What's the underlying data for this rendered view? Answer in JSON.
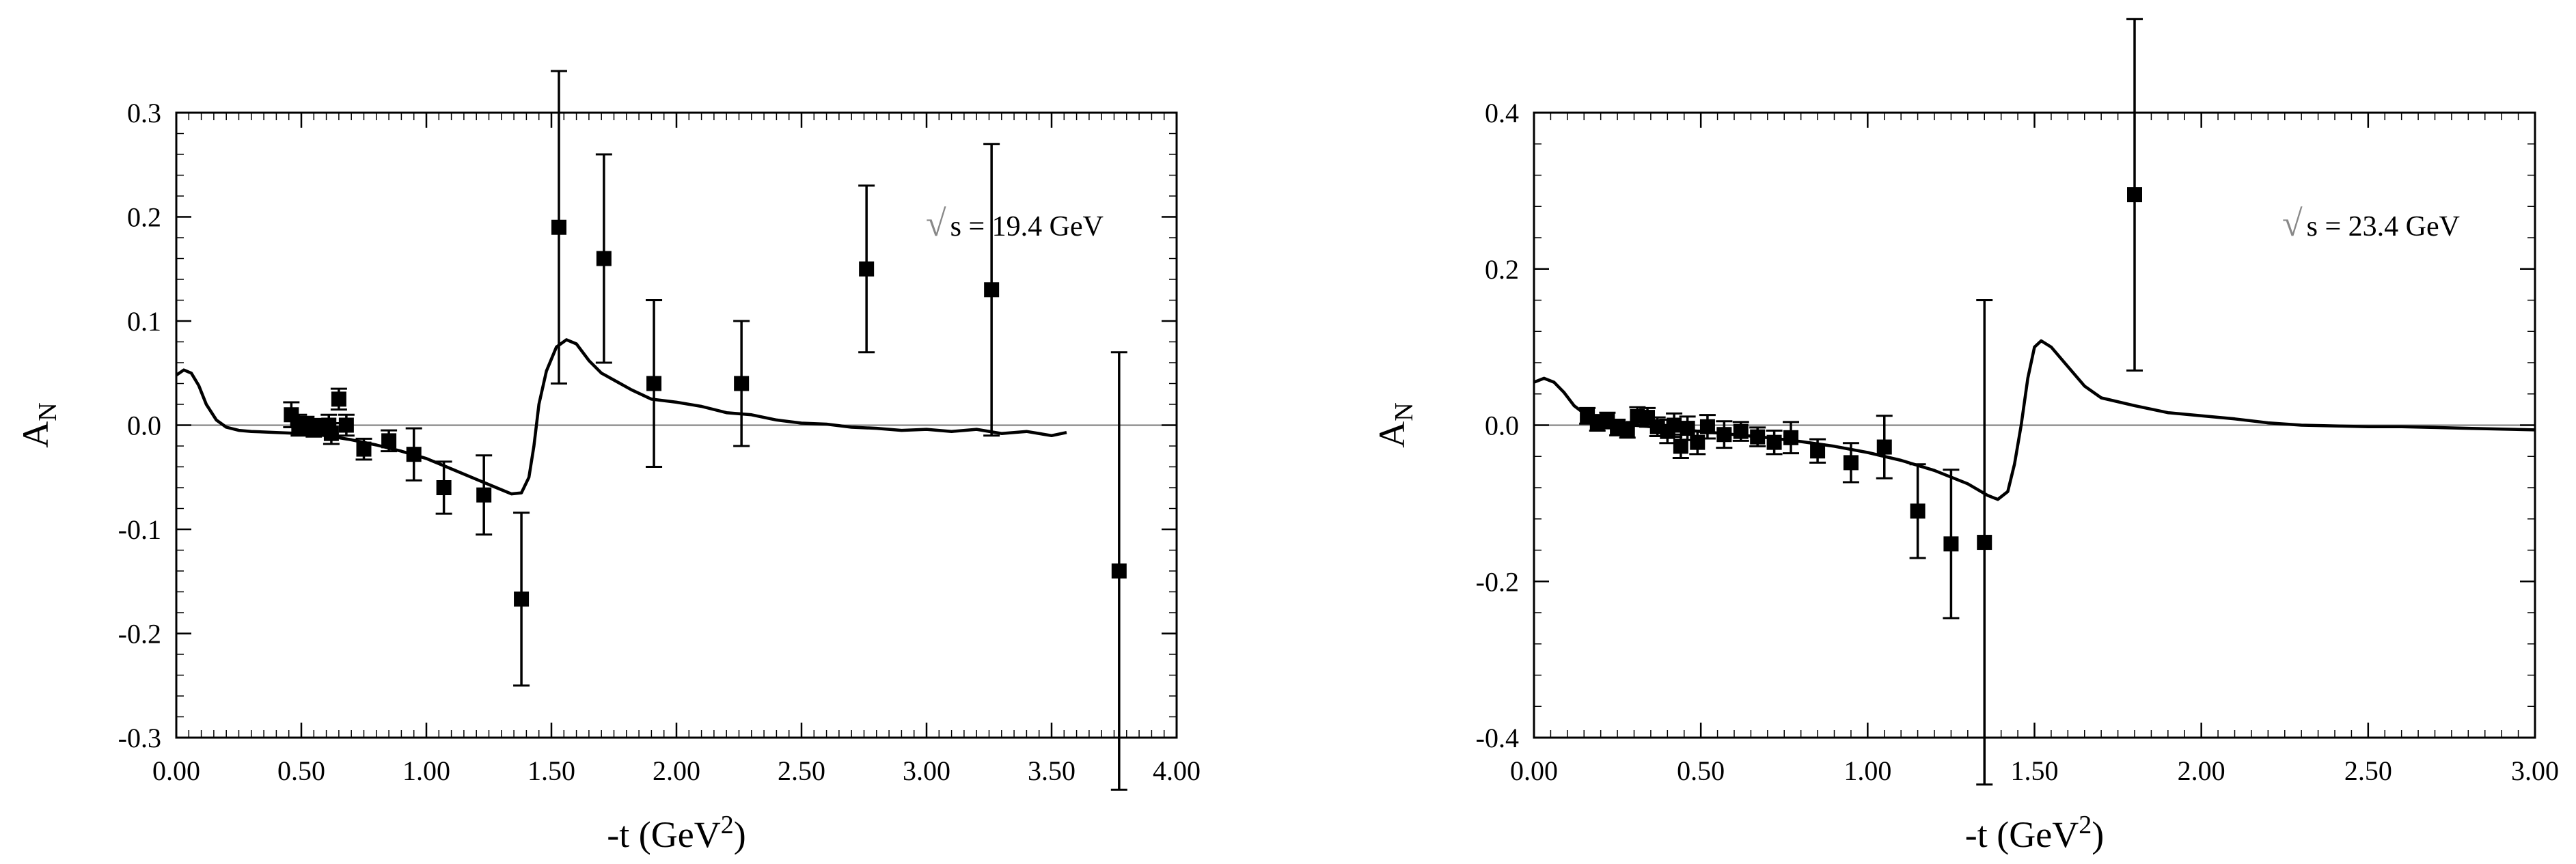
{
  "chart_data": [
    {
      "type": "scatter",
      "title": "",
      "xlabel": "-t (GeV",
      "xlabel_sup": "2",
      "xlabel_close": ")",
      "ylabel": "A",
      "ylabel_sub": "N",
      "annotation": {
        "sqrt": "√",
        "text": "s = 19.4 GeV"
      },
      "xlim": [
        0,
        4.0
      ],
      "ylim": [
        -0.3,
        0.3
      ],
      "xticks": [
        0,
        0.5,
        1.0,
        1.5,
        2.0,
        2.5,
        3.0,
        3.5,
        4.0
      ],
      "xtick_labels": [
        "0.00",
        "0.50",
        "1.00",
        "1.50",
        "2.00",
        "2.50",
        "3.00",
        "3.50",
        "4.00"
      ],
      "yticks": [
        -0.3,
        -0.2,
        -0.1,
        0.0,
        0.1,
        0.2,
        0.3
      ],
      "ytick_labels": [
        "-0.3",
        "-0.2",
        "-0.1",
        "0.0",
        "0.1",
        "0.2",
        "0.3"
      ],
      "points": [
        {
          "x": 0.46,
          "y": 0.01,
          "err": 0.012
        },
        {
          "x": 0.49,
          "y": 0.0,
          "err": 0.01
        },
        {
          "x": 0.52,
          "y": 0.0,
          "err": 0.008
        },
        {
          "x": 0.55,
          "y": -0.003,
          "err": 0.008
        },
        {
          "x": 0.58,
          "y": -0.002,
          "err": 0.008
        },
        {
          "x": 0.61,
          "y": 0.0,
          "err": 0.01
        },
        {
          "x": 0.62,
          "y": -0.008,
          "err": 0.01
        },
        {
          "x": 0.65,
          "y": 0.025,
          "err": 0.01
        },
        {
          "x": 0.68,
          "y": 0.0,
          "err": 0.01
        },
        {
          "x": 0.75,
          "y": -0.023,
          "err": 0.01
        },
        {
          "x": 0.85,
          "y": -0.015,
          "err": 0.01
        },
        {
          "x": 0.95,
          "y": -0.028,
          "err": 0.025
        },
        {
          "x": 1.07,
          "y": -0.06,
          "err": 0.025
        },
        {
          "x": 1.23,
          "y": -0.067,
          "err": 0.038
        },
        {
          "x": 1.38,
          "y": -0.167,
          "err": 0.083
        },
        {
          "x": 1.53,
          "y": 0.19,
          "err": 0.15
        },
        {
          "x": 1.71,
          "y": 0.16,
          "err": 0.1
        },
        {
          "x": 1.91,
          "y": 0.04,
          "err": 0.08
        },
        {
          "x": 2.26,
          "y": 0.04,
          "err": 0.06
        },
        {
          "x": 2.76,
          "y": 0.15,
          "err": 0.08
        },
        {
          "x": 3.26,
          "y": 0.13,
          "err": 0.14
        },
        {
          "x": 3.77,
          "y": -0.14,
          "err": 0.21
        }
      ],
      "curve": [
        [
          0.0,
          0.048
        ],
        [
          0.03,
          0.053
        ],
        [
          0.06,
          0.05
        ],
        [
          0.09,
          0.038
        ],
        [
          0.12,
          0.02
        ],
        [
          0.16,
          0.005
        ],
        [
          0.2,
          -0.002
        ],
        [
          0.25,
          -0.005
        ],
        [
          0.3,
          -0.006
        ],
        [
          0.4,
          -0.007
        ],
        [
          0.5,
          -0.008
        ],
        [
          0.6,
          -0.01
        ],
        [
          0.7,
          -0.014
        ],
        [
          0.8,
          -0.019
        ],
        [
          0.9,
          -0.025
        ],
        [
          1.0,
          -0.032
        ],
        [
          1.1,
          -0.042
        ],
        [
          1.2,
          -0.052
        ],
        [
          1.28,
          -0.06
        ],
        [
          1.34,
          -0.066
        ],
        [
          1.38,
          -0.065
        ],
        [
          1.41,
          -0.05
        ],
        [
          1.43,
          -0.02
        ],
        [
          1.45,
          0.02
        ],
        [
          1.48,
          0.052
        ],
        [
          1.52,
          0.075
        ],
        [
          1.56,
          0.082
        ],
        [
          1.6,
          0.078
        ],
        [
          1.65,
          0.062
        ],
        [
          1.7,
          0.05
        ],
        [
          1.76,
          0.042
        ],
        [
          1.82,
          0.034
        ],
        [
          1.9,
          0.025
        ],
        [
          2.0,
          0.022
        ],
        [
          2.1,
          0.018
        ],
        [
          2.2,
          0.012
        ],
        [
          2.3,
          0.01
        ],
        [
          2.4,
          0.005
        ],
        [
          2.5,
          0.002
        ],
        [
          2.6,
          0.001
        ],
        [
          2.7,
          -0.002
        ],
        [
          2.8,
          -0.003
        ],
        [
          2.9,
          -0.005
        ],
        [
          3.0,
          -0.004
        ],
        [
          3.1,
          -0.006
        ],
        [
          3.2,
          -0.004
        ],
        [
          3.3,
          -0.008
        ],
        [
          3.4,
          -0.006
        ],
        [
          3.5,
          -0.01
        ],
        [
          3.56,
          -0.007
        ]
      ]
    },
    {
      "type": "scatter",
      "title": "",
      "xlabel": "-t (GeV",
      "xlabel_sup": "2",
      "xlabel_close": ")",
      "ylabel": "A",
      "ylabel_sub": "N",
      "annotation": {
        "sqrt": "√",
        "text": "s = 23.4 GeV"
      },
      "xlim": [
        0,
        3.0
      ],
      "ylim": [
        -0.4,
        0.4
      ],
      "xticks": [
        0,
        0.5,
        1.0,
        1.5,
        2.0,
        2.5,
        3.0
      ],
      "xtick_labels": [
        "0.00",
        "0.50",
        "1.00",
        "1.50",
        "2.00",
        "2.50",
        "3.00"
      ],
      "yticks": [
        -0.4,
        -0.2,
        0.0,
        0.2,
        0.4
      ],
      "ytick_labels": [
        "-0.4",
        "-0.2",
        "0.0",
        "0.2",
        "0.4"
      ],
      "points": [
        {
          "x": 0.16,
          "y": 0.012,
          "err": 0.01
        },
        {
          "x": 0.19,
          "y": 0.003,
          "err": 0.01
        },
        {
          "x": 0.22,
          "y": 0.006,
          "err": 0.01
        },
        {
          "x": 0.25,
          "y": -0.003,
          "err": 0.01
        },
        {
          "x": 0.28,
          "y": -0.006,
          "err": 0.01
        },
        {
          "x": 0.31,
          "y": 0.011,
          "err": 0.012
        },
        {
          "x": 0.34,
          "y": 0.01,
          "err": 0.012
        },
        {
          "x": 0.37,
          "y": -0.002,
          "err": 0.012
        },
        {
          "x": 0.4,
          "y": -0.008,
          "err": 0.015
        },
        {
          "x": 0.42,
          "y": 0.0,
          "err": 0.015
        },
        {
          "x": 0.44,
          "y": -0.027,
          "err": 0.015
        },
        {
          "x": 0.46,
          "y": -0.004,
          "err": 0.015
        },
        {
          "x": 0.49,
          "y": -0.022,
          "err": 0.015
        },
        {
          "x": 0.52,
          "y": -0.002,
          "err": 0.015
        },
        {
          "x": 0.57,
          "y": -0.012,
          "err": 0.017
        },
        {
          "x": 0.62,
          "y": -0.008,
          "err": 0.012
        },
        {
          "x": 0.67,
          "y": -0.015,
          "err": 0.012
        },
        {
          "x": 0.72,
          "y": -0.022,
          "err": 0.015
        },
        {
          "x": 0.77,
          "y": -0.016,
          "err": 0.02
        },
        {
          "x": 0.85,
          "y": -0.033,
          "err": 0.015
        },
        {
          "x": 0.95,
          "y": -0.048,
          "err": 0.025
        },
        {
          "x": 1.05,
          "y": -0.028,
          "err": 0.04
        },
        {
          "x": 1.15,
          "y": -0.11,
          "err": 0.06
        },
        {
          "x": 1.25,
          "y": -0.152,
          "err": 0.095
        },
        {
          "x": 1.35,
          "y": -0.15,
          "err": 0.31
        },
        {
          "x": 1.8,
          "y": 0.295,
          "err": 0.225
        }
      ],
      "curve": [
        [
          0.0,
          0.055
        ],
        [
          0.03,
          0.06
        ],
        [
          0.06,
          0.055
        ],
        [
          0.09,
          0.042
        ],
        [
          0.12,
          0.025
        ],
        [
          0.16,
          0.012
        ],
        [
          0.2,
          0.004
        ],
        [
          0.3,
          0.0
        ],
        [
          0.4,
          -0.004
        ],
        [
          0.5,
          -0.008
        ],
        [
          0.6,
          -0.012
        ],
        [
          0.7,
          -0.016
        ],
        [
          0.8,
          -0.021
        ],
        [
          0.9,
          -0.027
        ],
        [
          1.0,
          -0.035
        ],
        [
          1.1,
          -0.045
        ],
        [
          1.2,
          -0.058
        ],
        [
          1.3,
          -0.075
        ],
        [
          1.36,
          -0.09
        ],
        [
          1.39,
          -0.095
        ],
        [
          1.42,
          -0.085
        ],
        [
          1.44,
          -0.05
        ],
        [
          1.46,
          0.0
        ],
        [
          1.48,
          0.06
        ],
        [
          1.5,
          0.1
        ],
        [
          1.52,
          0.108
        ],
        [
          1.55,
          0.1
        ],
        [
          1.6,
          0.075
        ],
        [
          1.65,
          0.05
        ],
        [
          1.7,
          0.035
        ],
        [
          1.8,
          0.025
        ],
        [
          1.9,
          0.016
        ],
        [
          2.0,
          0.012
        ],
        [
          2.1,
          0.008
        ],
        [
          2.2,
          0.003
        ],
        [
          2.3,
          0.0
        ],
        [
          2.4,
          -0.001
        ],
        [
          2.5,
          -0.002
        ],
        [
          2.6,
          -0.002
        ],
        [
          2.7,
          -0.003
        ],
        [
          2.8,
          -0.004
        ],
        [
          2.9,
          -0.005
        ],
        [
          3.0,
          -0.006
        ]
      ]
    }
  ]
}
